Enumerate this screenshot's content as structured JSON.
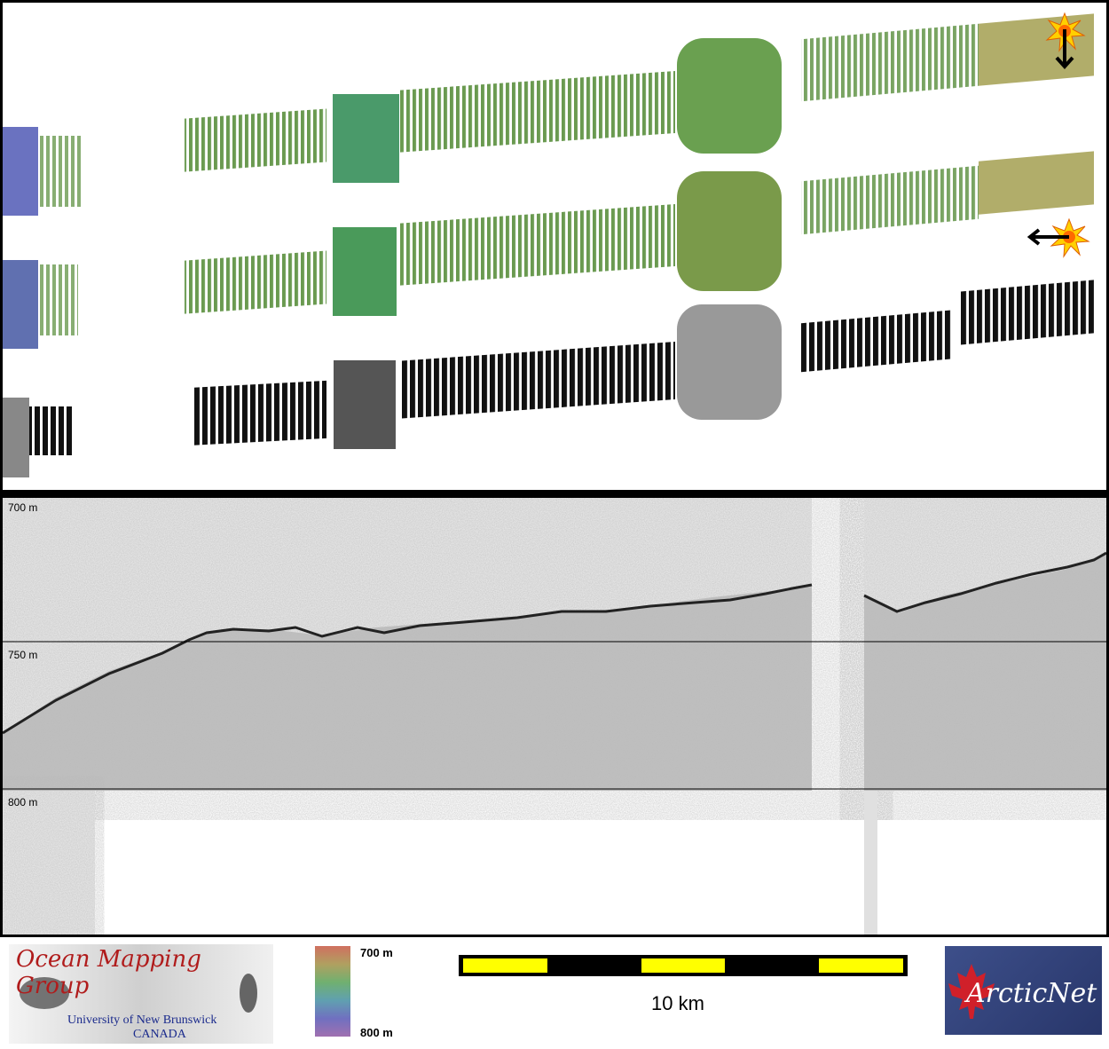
{
  "profile": {
    "depth_labels": [
      "700 m",
      "750 m",
      "800 m"
    ]
  },
  "logos": {
    "omg_title": "Ocean Mapping Group",
    "omg_university": "University of New Brunswick",
    "omg_country": "CANADA",
    "arcticnet": "ArcticNet"
  },
  "colorbar": {
    "top_label": "700 m",
    "bottom_label": "800 m"
  },
  "scale_bar": {
    "label": "10 km"
  },
  "colors": {
    "swath_blue": "#5a64b8",
    "swath_green": "#4a9a5a",
    "swath_yellow": "#b8b45a",
    "scale_yellow": "#ffff00",
    "omg_red": "#b01c1c"
  }
}
